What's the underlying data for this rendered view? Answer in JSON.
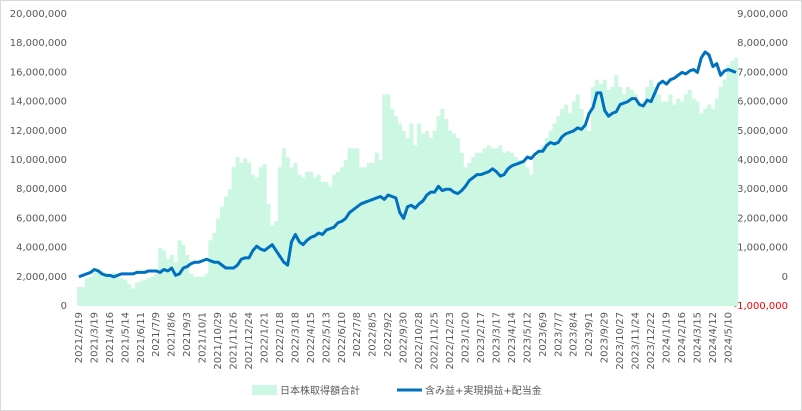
{
  "chart_data": {
    "type": "bar",
    "categories": [
      "2021/2/19",
      null,
      null,
      null,
      "2021/3/19",
      null,
      null,
      null,
      "2021/4/16",
      null,
      null,
      null,
      "2021/5/14",
      null,
      null,
      null,
      "2021/6/11",
      null,
      null,
      null,
      "2021/7/9",
      null,
      null,
      null,
      "2021/8/6",
      null,
      null,
      null,
      "2021/9/3",
      null,
      null,
      null,
      "2021/10/1",
      null,
      null,
      null,
      "2021/10/29",
      null,
      null,
      null,
      "2021/11/26",
      null,
      null,
      null,
      "2021/12/24",
      null,
      null,
      null,
      "2022/1/21",
      null,
      null,
      null,
      "2022/2/18",
      null,
      null,
      null,
      "2022/3/18",
      null,
      null,
      null,
      "2022/4/15",
      null,
      null,
      null,
      "2022/5/13",
      null,
      null,
      null,
      "2022/6/10",
      null,
      null,
      null,
      "2022/7/8",
      null,
      null,
      null,
      "2022/8/5",
      null,
      null,
      null,
      "2022/9/2",
      null,
      null,
      null,
      "2022/9/30",
      null,
      null,
      null,
      "2022/10/28",
      null,
      null,
      null,
      "2022/11/25",
      null,
      null,
      null,
      "2022/12/23",
      null,
      null,
      null,
      "2023/1/20",
      null,
      null,
      null,
      "2023/2/17",
      null,
      null,
      null,
      "2023/3/17",
      null,
      null,
      null,
      "2023/4/14",
      null,
      null,
      null,
      "2023/5/12",
      null,
      null,
      null,
      "2023/6/9",
      null,
      null,
      null,
      "2023/7/7",
      null,
      null,
      null,
      "2023/8/4",
      null,
      null,
      null,
      "2023/9/1",
      null,
      null,
      null,
      "2023/9/29",
      null,
      null,
      null,
      "2023/10/27",
      null,
      null,
      null,
      "2023/11/24",
      null,
      null,
      null,
      "2023/12/22",
      null,
      null,
      null,
      "2024/1/19",
      null,
      null,
      null,
      "2024/2/16",
      null,
      null,
      null,
      "2024/3/15",
      null,
      null,
      null,
      "2024/4/12",
      null,
      null,
      null,
      "2024/5/10",
      null,
      null
    ],
    "series": [
      {
        "name": "日本株取得額合計",
        "type": "bar",
        "color": "#ccf7e2",
        "values": [
          1300000,
          1300000,
          1900000,
          2000000,
          2300000,
          2500000,
          2200000,
          2100000,
          2200000,
          2300000,
          2000000,
          1900000,
          1800000,
          1500000,
          1200000,
          1600000,
          1700000,
          1800000,
          1900000,
          2000000,
          2200000,
          4000000,
          3800000,
          3200000,
          3500000,
          3000000,
          4500000,
          4200000,
          3500000,
          2200000,
          2000000,
          2000000,
          2000000,
          2200000,
          4500000,
          5000000,
          6000000,
          6800000,
          7500000,
          8000000,
          9500000,
          10200000,
          9800000,
          10100000,
          9800000,
          9000000,
          8800000,
          9500000,
          9700000,
          7000000,
          5500000,
          5800000,
          9500000,
          10800000,
          10200000,
          9500000,
          9800000,
          9000000,
          8800000,
          9200000,
          9200000,
          8800000,
          9000000,
          8500000,
          8500000,
          8200000,
          9000000,
          9200000,
          9500000,
          10000000,
          10800000,
          10800000,
          10800000,
          9500000,
          9500000,
          9800000,
          9800000,
          10500000,
          10000000,
          14500000,
          14500000,
          13500000,
          13000000,
          12500000,
          12000000,
          11500000,
          12500000,
          11000000,
          12500000,
          11800000,
          12000000,
          11500000,
          12000000,
          13000000,
          13500000,
          12800000,
          12000000,
          11800000,
          11500000,
          10500000,
          9500000,
          9800000,
          10200000,
          10500000,
          10500000,
          10800000,
          11000000,
          10800000,
          10800000,
          11000000,
          10500000,
          10600000,
          10500000,
          10200000,
          10000000,
          9800000,
          9500000,
          9000000,
          10200000,
          10500000,
          11000000,
          11500000,
          12000000,
          12500000,
          13000000,
          13500000,
          13800000,
          13200000,
          14000000,
          14500000,
          13500000,
          12500000,
          12000000,
          15000000,
          15500000,
          15200000,
          15500000,
          14800000,
          15000000,
          15800000,
          15000000,
          14500000,
          15000000,
          14800000,
          14500000,
          13800000,
          14000000,
          15000000,
          15500000,
          15000000,
          14500000,
          14000000,
          14000000,
          14500000,
          13800000,
          14200000,
          14000000,
          14500000,
          14800000,
          14200000,
          14000000,
          13200000,
          13500000,
          13800000,
          13500000,
          14200000,
          15000000,
          15500000,
          16500000,
          16800000,
          17000000
        ]
      },
      {
        "name": "含み益+実現損益+配当金",
        "type": "line",
        "axis": "y2",
        "color": "#0070c0",
        "values": [
          0,
          50000,
          100000,
          150000,
          250000,
          200000,
          100000,
          50000,
          50000,
          0,
          50000,
          100000,
          100000,
          100000,
          100000,
          150000,
          150000,
          150000,
          200000,
          200000,
          200000,
          150000,
          250000,
          200000,
          300000,
          50000,
          100000,
          300000,
          350000,
          450000,
          500000,
          500000,
          550000,
          600000,
          550000,
          500000,
          500000,
          400000,
          300000,
          300000,
          300000,
          400000,
          600000,
          650000,
          650000,
          900000,
          1050000,
          950000,
          900000,
          1000000,
          1100000,
          900000,
          700000,
          500000,
          400000,
          1200000,
          1450000,
          1200000,
          1100000,
          1250000,
          1350000,
          1400000,
          1500000,
          1450000,
          1600000,
          1650000,
          1700000,
          1850000,
          1900000,
          2000000,
          2200000,
          2300000,
          2400000,
          2500000,
          2550000,
          2600000,
          2650000,
          2700000,
          2750000,
          2650000,
          2800000,
          2750000,
          2700000,
          2200000,
          2000000,
          2400000,
          2450000,
          2350000,
          2500000,
          2600000,
          2800000,
          2900000,
          2900000,
          3100000,
          2950000,
          3000000,
          3000000,
          2900000,
          2850000,
          2950000,
          3100000,
          3300000,
          3400000,
          3500000,
          3500000,
          3550000,
          3600000,
          3700000,
          3600000,
          3450000,
          3500000,
          3700000,
          3800000,
          3850000,
          3900000,
          3950000,
          4100000,
          4050000,
          4200000,
          4300000,
          4300000,
          4500000,
          4600000,
          4550000,
          4600000,
          4800000,
          4900000,
          4950000,
          5000000,
          5100000,
          5050000,
          5200000,
          5600000,
          5800000,
          6300000,
          6300000,
          5700000,
          5500000,
          5600000,
          5650000,
          5900000,
          5950000,
          6000000,
          6100000,
          6100000,
          5900000,
          5850000,
          6050000,
          6000000,
          6300000,
          6600000,
          6700000,
          6600000,
          6750000,
          6800000,
          6900000,
          7000000,
          6950000,
          7050000,
          7100000,
          7000000,
          7500000,
          7700000,
          7600000,
          7200000,
          7300000,
          6900000,
          7050000,
          7100000,
          7050000,
          7000000
        ]
      }
    ],
    "ylim": [
      0,
      20000000
    ],
    "yticks": [
      0,
      {
        "value": 2000000,
        "label": "2,000,000"
      },
      {
        "value": 4000000,
        "label": "4,000,000"
      },
      {
        "value": 6000000,
        "label": "6,000,000"
      },
      {
        "value": 8000000,
        "label": "8,000,000"
      },
      {
        "value": 10000000,
        "label": "10,000,000"
      },
      {
        "value": 12000000,
        "label": "12,000,000"
      },
      {
        "value": 14000000,
        "label": "14,000,000"
      },
      {
        "value": 16000000,
        "label": "16,000,000"
      },
      {
        "value": 18000000,
        "label": "18,000,000"
      },
      {
        "value": 20000000,
        "label": "20,000,000"
      }
    ],
    "y2lim": [
      -1000000,
      9000000
    ],
    "y2ticks": [
      {
        "value": -1000000,
        "label": "-1,000,000"
      },
      0,
      {
        "value": 1000000,
        "label": "1,000,000"
      },
      {
        "value": 2000000,
        "label": "2,000,000"
      },
      {
        "value": 3000000,
        "label": "3,000,000"
      },
      {
        "value": 4000000,
        "label": "4,000,000"
      },
      {
        "value": 5000000,
        "label": "5,000,000"
      },
      {
        "value": 6000000,
        "label": "6,000,000"
      },
      {
        "value": 7000000,
        "label": "7,000,000"
      },
      {
        "value": 8000000,
        "label": "8,000,000"
      },
      {
        "value": 9000000,
        "label": "9,000,000"
      }
    ],
    "y2_negative_tick_color": "#ff0000",
    "grid": false,
    "legend": "bottom"
  }
}
